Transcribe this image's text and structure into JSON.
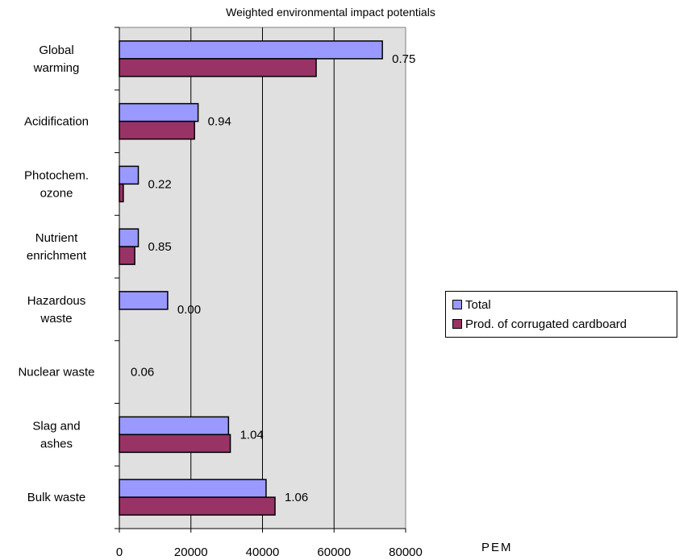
{
  "chart_data": {
    "type": "bar",
    "orientation": "horizontal",
    "title": "Weighted environmental impact potentials",
    "xlabel": "PEM",
    "ylabel": "",
    "xlim": [
      0,
      80000
    ],
    "xticks": [
      0,
      20000,
      40000,
      60000,
      80000
    ],
    "grid": true,
    "legend_position": "right",
    "categories": [
      [
        "Global",
        "warming"
      ],
      [
        "Acidification"
      ],
      [
        "Photochem.",
        "ozone"
      ],
      [
        "Nutrient",
        "enrichment"
      ],
      [
        "Hazardous",
        "waste"
      ],
      [
        "Nuclear waste"
      ],
      [
        "Slag and",
        "ashes"
      ],
      [
        "Bulk waste"
      ]
    ],
    "series": [
      {
        "name": "Total",
        "color": "#9999ff",
        "values": [
          73500,
          22000,
          5300,
          5300,
          13500,
          0,
          30500,
          41000
        ]
      },
      {
        "name": "Prod. of corrugated cardboard",
        "color": "#993366",
        "values": [
          55000,
          21000,
          1100,
          4300,
          0,
          0,
          31000,
          43500
        ]
      }
    ],
    "ratio_labels": [
      "0.75",
      "0.94",
      "0.22",
      "0.85",
      "0.00",
      "0.06",
      "1.04",
      "1.06"
    ],
    "plot_area_color": "#e0e0e0"
  }
}
